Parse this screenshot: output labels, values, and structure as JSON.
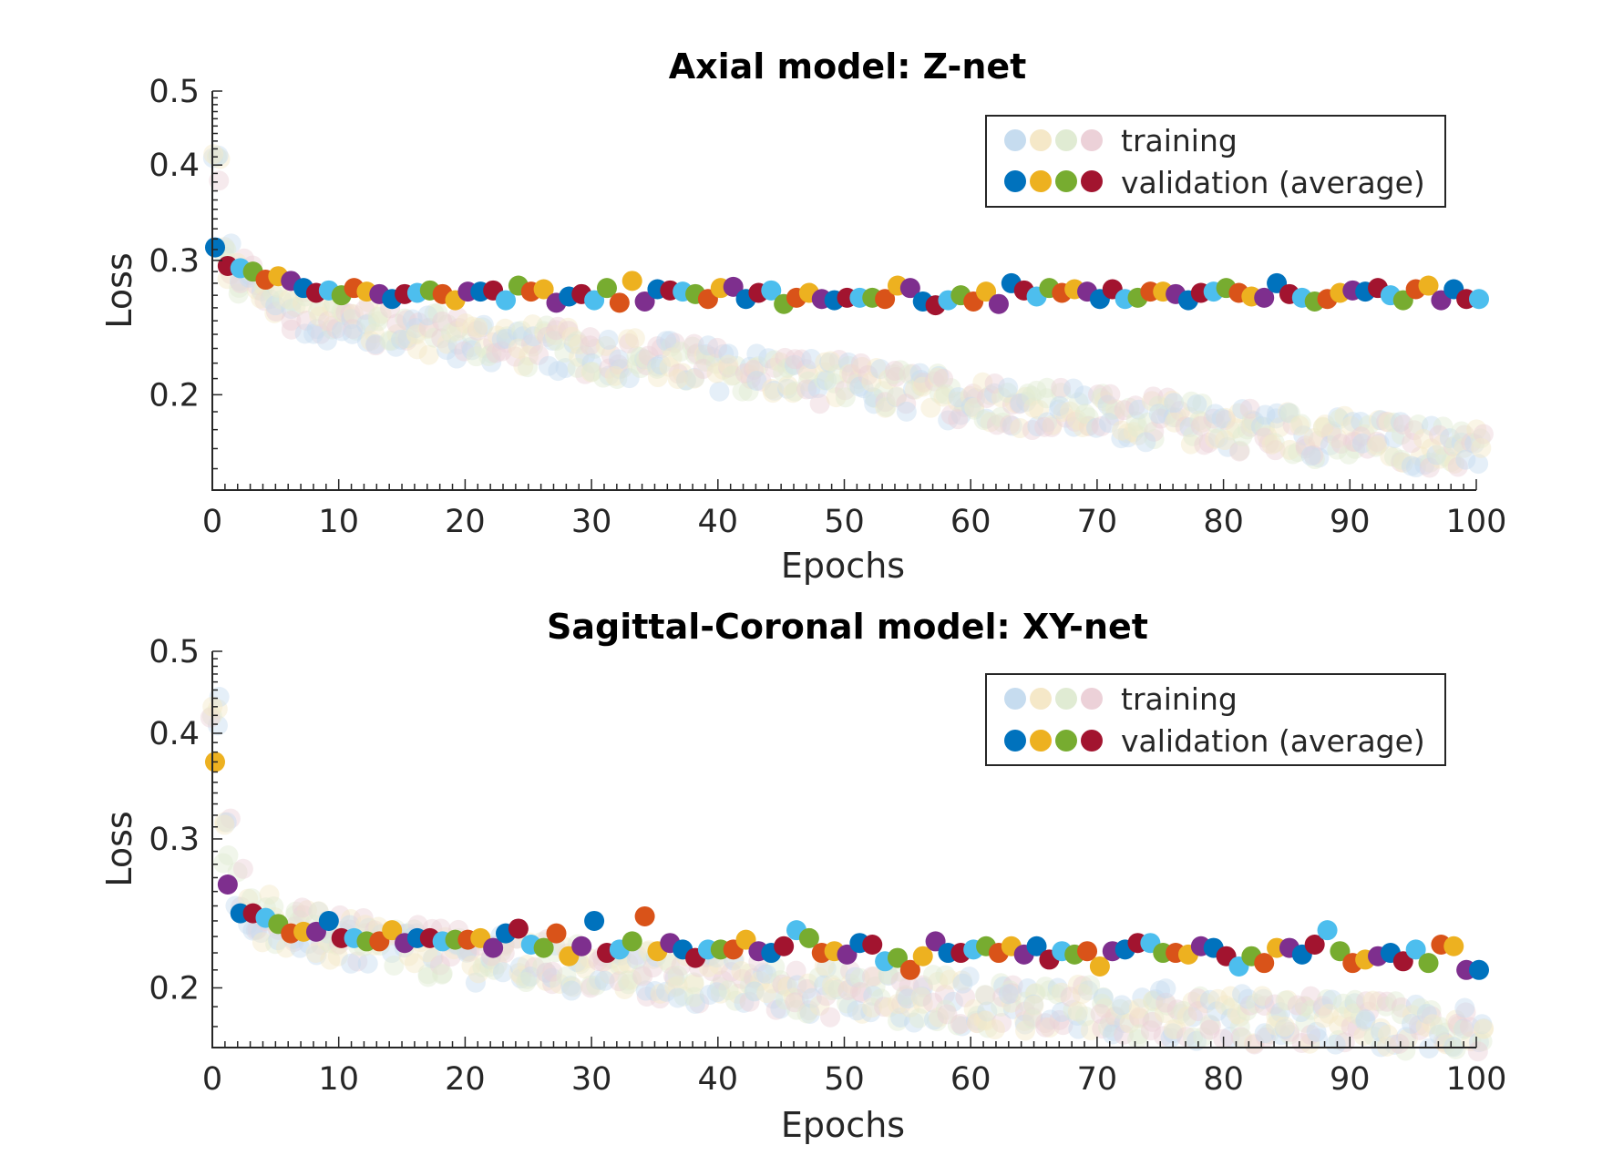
{
  "colors": {
    "training": [
      "#c6dcef",
      "#f5e8c8",
      "#e0ebd3",
      "#ecd1d8"
    ],
    "validation": [
      "#0072bd",
      "#edb120",
      "#77ac30",
      "#a2142f",
      "#7e2f8e",
      "#d95319",
      "#4dbeee"
    ],
    "axis": "#262626"
  },
  "chart_data": [
    {
      "type": "scatter",
      "title": "Axial model: Z-net",
      "xlabel": "Epochs",
      "ylabel": "Loss",
      "xlim": [
        0,
        100
      ],
      "ylim": [
        0.15,
        0.5
      ],
      "yscale": "log",
      "xticks": [
        "0",
        "10",
        "20",
        "30",
        "40",
        "50",
        "60",
        "70",
        "80",
        "90",
        "100"
      ],
      "yticks": [
        "0.2",
        "0.3",
        "0.4",
        "0.5"
      ],
      "legend": {
        "position": "top-right",
        "entries": [
          "training",
          "validation (average)"
        ]
      },
      "series": [
        {
          "name": "validation (average)",
          "x": [
            0,
            1,
            2,
            3,
            4,
            5,
            6,
            7,
            8,
            9,
            10,
            11,
            12,
            13,
            14,
            15,
            16,
            17,
            18,
            19,
            20,
            21,
            22,
            23,
            24,
            25,
            26,
            27,
            28,
            29,
            30,
            31,
            32,
            33,
            34,
            35,
            36,
            37,
            38,
            39,
            40,
            41,
            42,
            43,
            44,
            45,
            46,
            47,
            48,
            49,
            50,
            51,
            52,
            53,
            54,
            55,
            56,
            57,
            58,
            59,
            60,
            61,
            62,
            63,
            64,
            65,
            66,
            67,
            68,
            69,
            70,
            71,
            72,
            73,
            74,
            75,
            76,
            77,
            78,
            79,
            80,
            81,
            82,
            83,
            84,
            85,
            86,
            87,
            88,
            89,
            90,
            91,
            92,
            93,
            94,
            95,
            96,
            97,
            98,
            99,
            100
          ],
          "values": [
            0.312,
            0.295,
            0.293,
            0.29,
            0.283,
            0.286,
            0.282,
            0.276,
            0.272,
            0.274,
            0.27,
            0.276,
            0.273,
            0.271,
            0.267,
            0.271,
            0.272,
            0.274,
            0.271,
            0.266,
            0.273,
            0.273,
            0.274,
            0.266,
            0.278,
            0.273,
            0.275,
            0.264,
            0.269,
            0.271,
            0.266,
            0.276,
            0.264,
            0.282,
            0.265,
            0.275,
            0.274,
            0.273,
            0.271,
            0.267,
            0.276,
            0.277,
            0.267,
            0.272,
            0.274,
            0.263,
            0.268,
            0.272,
            0.267,
            0.266,
            0.268,
            0.268,
            0.268,
            0.267,
            0.278,
            0.276,
            0.265,
            0.262,
            0.266,
            0.27,
            0.265,
            0.273,
            0.263,
            0.28,
            0.274,
            0.269,
            0.276,
            0.272,
            0.275,
            0.273,
            0.267,
            0.275,
            0.267,
            0.268,
            0.273,
            0.273,
            0.271,
            0.266,
            0.272,
            0.273,
            0.276,
            0.272,
            0.269,
            0.268,
            0.28,
            0.271,
            0.268,
            0.265,
            0.267,
            0.272,
            0.274,
            0.273,
            0.276,
            0.27,
            0.266,
            0.275,
            0.278,
            0.266,
            0.275,
            0.267,
            0.267
          ]
        },
        {
          "name": "training",
          "x": [
            0,
            1,
            2,
            3,
            4,
            5,
            6,
            7,
            8,
            9,
            10,
            11,
            12,
            13,
            14,
            15,
            16,
            17,
            18,
            19,
            20,
            21,
            22,
            23,
            24,
            25,
            26,
            27,
            28,
            29,
            30,
            31,
            32,
            33,
            34,
            35,
            36,
            37,
            38,
            39,
            40,
            41,
            42,
            43,
            44,
            45,
            46,
            47,
            48,
            49,
            50,
            51,
            52,
            53,
            54,
            55,
            56,
            57,
            58,
            59,
            60,
            61,
            62,
            63,
            64,
            65,
            66,
            67,
            68,
            69,
            70,
            71,
            72,
            73,
            74,
            75,
            76,
            77,
            78,
            79,
            80,
            81,
            82,
            83,
            84,
            85,
            86,
            87,
            88,
            89,
            90,
            91,
            92,
            93,
            94,
            95,
            96,
            97,
            98,
            99,
            100
          ],
          "values": [
            0.4,
            0.3,
            0.285,
            0.277,
            0.27,
            0.265,
            0.261,
            0.258,
            0.255,
            0.253,
            0.251,
            0.249,
            0.248,
            0.246,
            0.245,
            0.244,
            0.242,
            0.241,
            0.24,
            0.239,
            0.238,
            0.236,
            0.235,
            0.234,
            0.233,
            0.232,
            0.231,
            0.23,
            0.229,
            0.228,
            0.227,
            0.226,
            0.225,
            0.224,
            0.223,
            0.222,
            0.221,
            0.22,
            0.219,
            0.218,
            0.217,
            0.216,
            0.215,
            0.214,
            0.213,
            0.212,
            0.211,
            0.21,
            0.209,
            0.208,
            0.207,
            0.206,
            0.205,
            0.204,
            0.203,
            0.202,
            0.201,
            0.2,
            0.199,
            0.199,
            0.198,
            0.197,
            0.196,
            0.195,
            0.194,
            0.193,
            0.193,
            0.192,
            0.191,
            0.19,
            0.189,
            0.189,
            0.188,
            0.187,
            0.186,
            0.186,
            0.185,
            0.184,
            0.183,
            0.183,
            0.182,
            0.181,
            0.181,
            0.18,
            0.179,
            0.179,
            0.178,
            0.177,
            0.177,
            0.176,
            0.175,
            0.175,
            0.174,
            0.174,
            0.173,
            0.172,
            0.172,
            0.171,
            0.171,
            0.17,
            0.17
          ]
        }
      ]
    },
    {
      "type": "scatter",
      "title": "Sagittal-Coronal model: XY-net",
      "xlabel": "Epochs",
      "ylabel": "Loss",
      "xlim": [
        0,
        100
      ],
      "ylim": [
        0.17,
        0.5
      ],
      "yscale": "log",
      "xticks": [
        "0",
        "10",
        "20",
        "30",
        "40",
        "50",
        "60",
        "70",
        "80",
        "90",
        "100"
      ],
      "yticks": [
        "0.2",
        "0.3",
        "0.4",
        "0.5"
      ],
      "legend": {
        "position": "top-right",
        "entries": [
          "training",
          "validation (average)"
        ]
      },
      "series": [
        {
          "name": "validation (average)",
          "x": [
            0,
            1,
            2,
            3,
            4,
            5,
            6,
            7,
            8,
            9,
            10,
            11,
            12,
            13,
            14,
            15,
            16,
            17,
            18,
            19,
            20,
            21,
            22,
            23,
            24,
            25,
            26,
            27,
            28,
            29,
            30,
            31,
            32,
            33,
            34,
            35,
            36,
            37,
            38,
            39,
            40,
            41,
            42,
            43,
            44,
            45,
            46,
            47,
            48,
            49,
            50,
            51,
            52,
            53,
            54,
            55,
            56,
            57,
            58,
            59,
            60,
            61,
            62,
            63,
            64,
            65,
            66,
            67,
            68,
            69,
            70,
            71,
            72,
            73,
            74,
            75,
            76,
            77,
            78,
            79,
            80,
            81,
            82,
            83,
            84,
            85,
            86,
            87,
            88,
            89,
            90,
            91,
            92,
            93,
            94,
            95,
            96,
            97,
            98,
            99,
            100
          ],
          "values": [
            0.37,
            0.265,
            0.245,
            0.245,
            0.242,
            0.238,
            0.232,
            0.233,
            0.233,
            0.24,
            0.229,
            0.229,
            0.227,
            0.227,
            0.234,
            0.226,
            0.229,
            0.229,
            0.227,
            0.228,
            0.228,
            0.229,
            0.223,
            0.232,
            0.235,
            0.225,
            0.223,
            0.232,
            0.218,
            0.224,
            0.24,
            0.22,
            0.222,
            0.227,
            0.243,
            0.221,
            0.226,
            0.222,
            0.217,
            0.222,
            0.222,
            0.222,
            0.228,
            0.221,
            0.22,
            0.224,
            0.234,
            0.229,
            0.22,
            0.221,
            0.219,
            0.226,
            0.225,
            0.215,
            0.217,
            0.21,
            0.218,
            0.227,
            0.22,
            0.22,
            0.222,
            0.224,
            0.22,
            0.224,
            0.219,
            0.224,
            0.216,
            0.221,
            0.219,
            0.221,
            0.212,
            0.221,
            0.222,
            0.226,
            0.226,
            0.22,
            0.22,
            0.219,
            0.224,
            0.223,
            0.218,
            0.212,
            0.218,
            0.214,
            0.223,
            0.223,
            0.219,
            0.225,
            0.234,
            0.221,
            0.214,
            0.216,
            0.218,
            0.22,
            0.215,
            0.222,
            0.214,
            0.225,
            0.224,
            0.21,
            0.21
          ]
        },
        {
          "name": "training",
          "x": [
            0,
            1,
            2,
            3,
            4,
            5,
            6,
            7,
            8,
            9,
            10,
            11,
            12,
            13,
            14,
            15,
            16,
            17,
            18,
            19,
            20,
            21,
            22,
            23,
            24,
            25,
            26,
            27,
            28,
            29,
            30,
            31,
            32,
            33,
            34,
            35,
            36,
            37,
            38,
            39,
            40,
            41,
            42,
            43,
            44,
            45,
            46,
            47,
            48,
            49,
            50,
            51,
            52,
            53,
            54,
            55,
            56,
            57,
            58,
            59,
            60,
            61,
            62,
            63,
            64,
            65,
            66,
            67,
            68,
            69,
            70,
            71,
            72,
            73,
            74,
            75,
            76,
            77,
            78,
            79,
            80,
            81,
            82,
            83,
            84,
            85,
            86,
            87,
            88,
            89,
            90,
            91,
            92,
            93,
            94,
            95,
            96,
            97,
            98,
            99,
            100
          ],
          "values": [
            0.42,
            0.3,
            0.262,
            0.25,
            0.243,
            0.238,
            0.235,
            0.233,
            0.231,
            0.229,
            0.228,
            0.227,
            0.226,
            0.225,
            0.224,
            0.223,
            0.222,
            0.221,
            0.22,
            0.219,
            0.219,
            0.218,
            0.217,
            0.216,
            0.215,
            0.215,
            0.214,
            0.213,
            0.212,
            0.212,
            0.211,
            0.21,
            0.209,
            0.209,
            0.208,
            0.207,
            0.207,
            0.206,
            0.205,
            0.205,
            0.204,
            0.203,
            0.203,
            0.202,
            0.201,
            0.201,
            0.2,
            0.2,
            0.199,
            0.198,
            0.198,
            0.197,
            0.197,
            0.196,
            0.196,
            0.195,
            0.195,
            0.194,
            0.194,
            0.193,
            0.193,
            0.192,
            0.192,
            0.191,
            0.191,
            0.19,
            0.19,
            0.19,
            0.189,
            0.189,
            0.188,
            0.188,
            0.188,
            0.187,
            0.187,
            0.187,
            0.186,
            0.186,
            0.186,
            0.185,
            0.185,
            0.185,
            0.184,
            0.184,
            0.184,
            0.183,
            0.183,
            0.183,
            0.182,
            0.182,
            0.182,
            0.182,
            0.181,
            0.181,
            0.181,
            0.18,
            0.18,
            0.18,
            0.18,
            0.179,
            0.179
          ]
        }
      ]
    }
  ]
}
